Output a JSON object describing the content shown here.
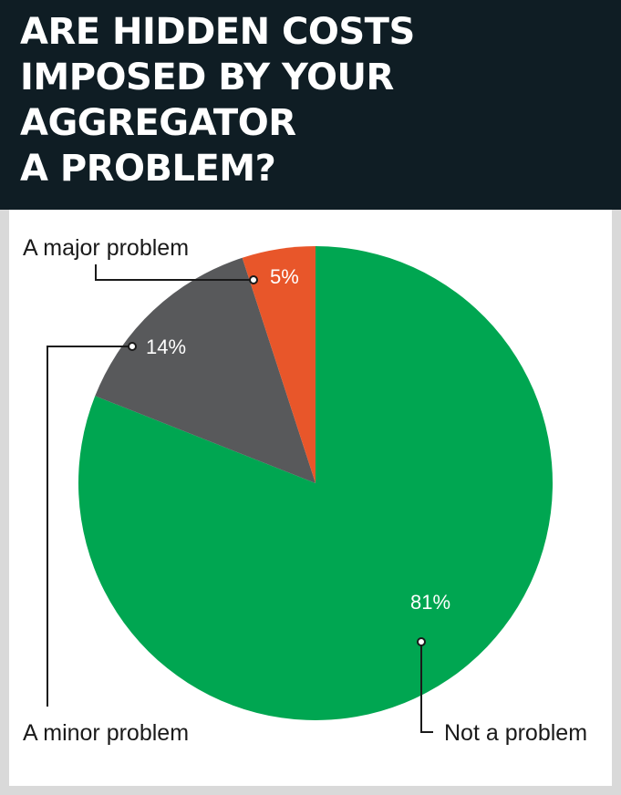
{
  "chart_data": {
    "type": "pie",
    "title": "ARE HIDDEN COSTS\nIMPOSED BY YOUR\nAGGREGATOR\nA PROBLEM?",
    "slices": [
      {
        "label": "Not a problem",
        "value": 81,
        "value_label": "81%",
        "color": "#00a651"
      },
      {
        "label": "A minor problem",
        "value": 14,
        "value_label": "14%",
        "color": "#58595b"
      },
      {
        "label": "A major problem",
        "value": 5,
        "value_label": "5%",
        "color": "#e8562a"
      }
    ],
    "legend": "callout labels"
  },
  "colors": {
    "header_bg": "#0f1d24",
    "panel_bg": "#ffffff",
    "frame": "#d9d9d9"
  }
}
